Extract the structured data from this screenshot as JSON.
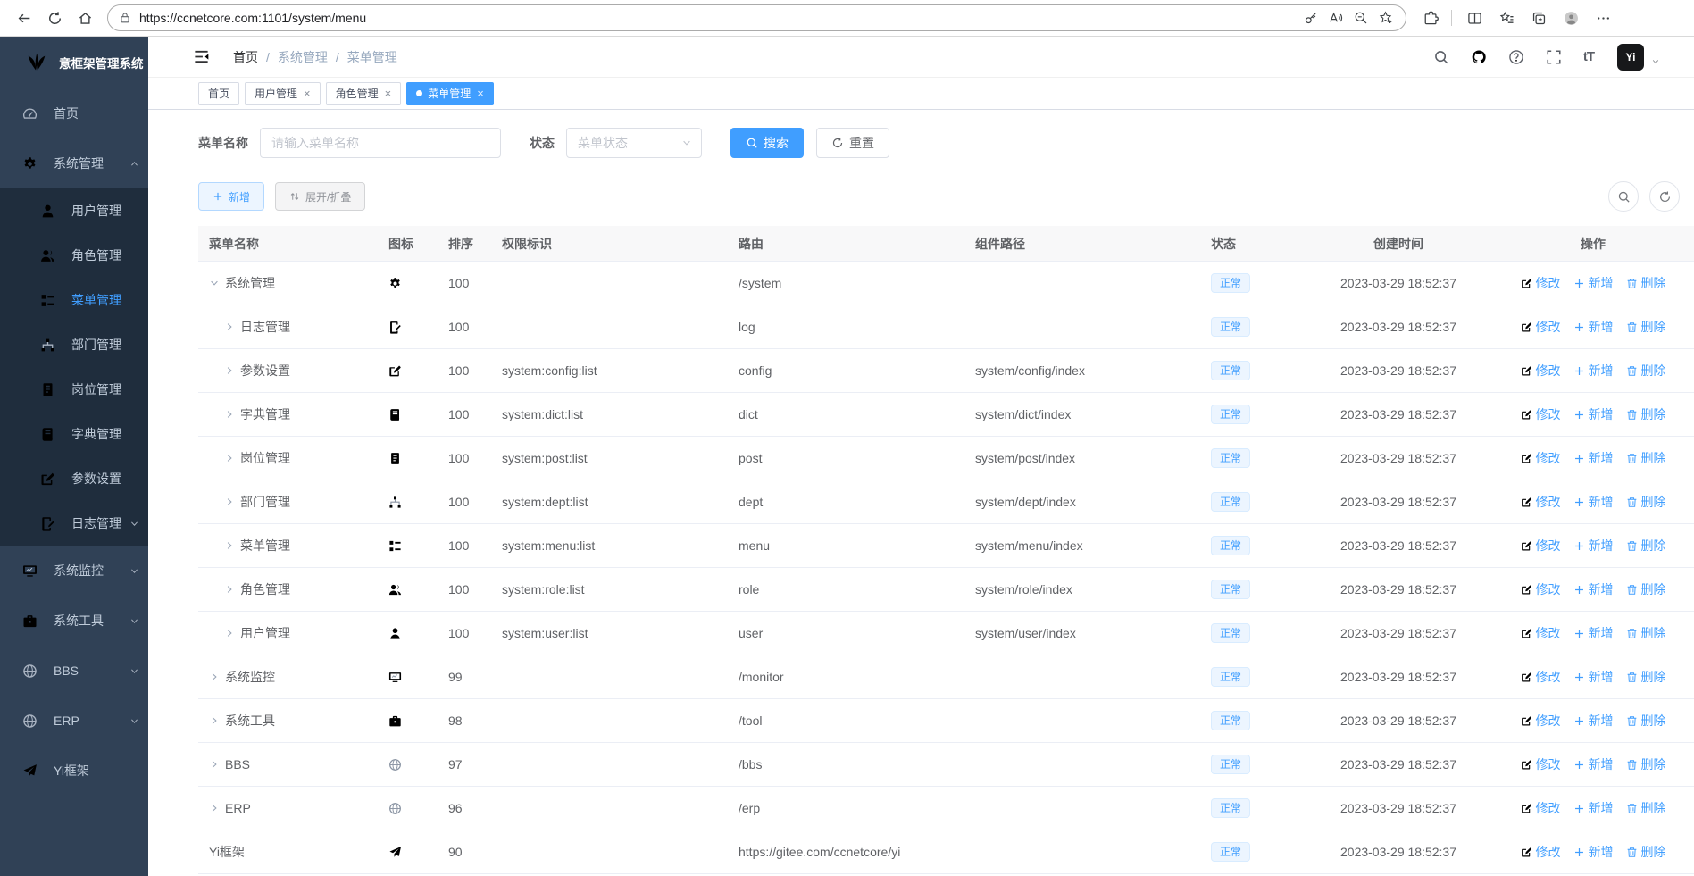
{
  "browser": {
    "url": "https://ccnetcore.com:1101/system/menu",
    "toolbar_icons_left": [
      "back-icon",
      "refresh-icon",
      "home-icon"
    ],
    "address_icons": [
      "lock-icon",
      "key-icon",
      "read-aloud-icon",
      "zoom-out-icon",
      "add-favorite-star-icon"
    ],
    "toolbar_icons_right": [
      "extensions-icon",
      "split-screen-icon",
      "favorites-icon",
      "collections-icon",
      "profile-avatar",
      "more-menu-icon",
      "bing-chat-icon"
    ]
  },
  "sidebar": {
    "logo_text": "意框架管理系统",
    "items": [
      {
        "key": "home",
        "label": "首页",
        "icon": "dashboard"
      },
      {
        "key": "system",
        "label": "系统管理",
        "icon": "gear",
        "expanded": true,
        "children": [
          {
            "key": "user",
            "label": "用户管理",
            "icon": "user"
          },
          {
            "key": "role",
            "label": "角色管理",
            "icon": "users"
          },
          {
            "key": "menu",
            "label": "菜单管理",
            "icon": "tree-list",
            "active": true
          },
          {
            "key": "dept",
            "label": "部门管理",
            "icon": "org"
          },
          {
            "key": "post",
            "label": "岗位管理",
            "icon": "badge"
          },
          {
            "key": "dict",
            "label": "字典管理",
            "icon": "book"
          },
          {
            "key": "config",
            "label": "参数设置",
            "icon": "edit"
          },
          {
            "key": "log",
            "label": "日志管理",
            "icon": "doc-edit",
            "has_children": true
          }
        ]
      },
      {
        "key": "monitor",
        "label": "系统监控",
        "icon": "monitor",
        "collapsible": true
      },
      {
        "key": "tool",
        "label": "系统工具",
        "icon": "brief",
        "collapsible": true
      },
      {
        "key": "bbs",
        "label": "BBS",
        "icon": "globe",
        "collapsible": true
      },
      {
        "key": "erp",
        "label": "ERP",
        "icon": "globe",
        "collapsible": true
      },
      {
        "key": "yi",
        "label": "Yi框架",
        "icon": "plane"
      }
    ]
  },
  "header": {
    "breadcrumb": [
      "首页",
      "系统管理",
      "菜单管理"
    ],
    "right_icons": [
      "search-icon",
      "github-icon",
      "help-icon",
      "fullscreen-icon",
      "font-size-icon"
    ],
    "logo_badge": "Yi"
  },
  "tabs": [
    {
      "label": "首页",
      "closable": false,
      "active": false
    },
    {
      "label": "用户管理",
      "closable": true,
      "active": false
    },
    {
      "label": "角色管理",
      "closable": true,
      "active": false
    },
    {
      "label": "菜单管理",
      "closable": true,
      "active": true
    }
  ],
  "filters": {
    "name_label": "菜单名称",
    "name_placeholder": "请输入菜单名称",
    "status_label": "状态",
    "status_placeholder": "菜单状态",
    "search_label": "搜索",
    "reset_label": "重置"
  },
  "toolbar": {
    "add_label": "新增",
    "expand_label": "展开/折叠",
    "icon_buttons": [
      "search-icon",
      "refresh-icon"
    ]
  },
  "table": {
    "columns": [
      "菜单名称",
      "图标",
      "排序",
      "权限标识",
      "路由",
      "组件路径",
      "状态",
      "创建时间",
      "操作"
    ],
    "actions": {
      "edit": "修改",
      "add": "新增",
      "delete": "删除"
    },
    "rows": [
      {
        "name": "系统管理",
        "level": 0,
        "expand": "open",
        "icon": "gear",
        "sort": "100",
        "perm": "",
        "route": "/system",
        "component": "",
        "status": "正常",
        "created": "2023-03-29 18:52:37"
      },
      {
        "name": "日志管理",
        "level": 1,
        "expand": "closed",
        "icon": "doc-edit",
        "sort": "100",
        "perm": "",
        "route": "log",
        "component": "",
        "status": "正常",
        "created": "2023-03-29 18:52:37"
      },
      {
        "name": "参数设置",
        "level": 1,
        "expand": "closed",
        "icon": "edit",
        "sort": "100",
        "perm": "system:config:list",
        "route": "config",
        "component": "system/config/index",
        "status": "正常",
        "created": "2023-03-29 18:52:37"
      },
      {
        "name": "字典管理",
        "level": 1,
        "expand": "closed",
        "icon": "book",
        "sort": "100",
        "perm": "system:dict:list",
        "route": "dict",
        "component": "system/dict/index",
        "status": "正常",
        "created": "2023-03-29 18:52:37"
      },
      {
        "name": "岗位管理",
        "level": 1,
        "expand": "closed",
        "icon": "badge",
        "sort": "100",
        "perm": "system:post:list",
        "route": "post",
        "component": "system/post/index",
        "status": "正常",
        "created": "2023-03-29 18:52:37"
      },
      {
        "name": "部门管理",
        "level": 1,
        "expand": "closed",
        "icon": "org",
        "sort": "100",
        "perm": "system:dept:list",
        "route": "dept",
        "component": "system/dept/index",
        "status": "正常",
        "created": "2023-03-29 18:52:37"
      },
      {
        "name": "菜单管理",
        "level": 1,
        "expand": "closed",
        "icon": "tree-list",
        "sort": "100",
        "perm": "system:menu:list",
        "route": "menu",
        "component": "system/menu/index",
        "status": "正常",
        "created": "2023-03-29 18:52:37"
      },
      {
        "name": "角色管理",
        "level": 1,
        "expand": "closed",
        "icon": "users",
        "sort": "100",
        "perm": "system:role:list",
        "route": "role",
        "component": "system/role/index",
        "status": "正常",
        "created": "2023-03-29 18:52:37"
      },
      {
        "name": "用户管理",
        "level": 1,
        "expand": "closed",
        "icon": "user",
        "sort": "100",
        "perm": "system:user:list",
        "route": "user",
        "component": "system/user/index",
        "status": "正常",
        "created": "2023-03-29 18:52:37"
      },
      {
        "name": "系统监控",
        "level": 0,
        "expand": "closed",
        "icon": "monitor",
        "sort": "99",
        "perm": "",
        "route": "/monitor",
        "component": "",
        "status": "正常",
        "created": "2023-03-29 18:52:37"
      },
      {
        "name": "系统工具",
        "level": 0,
        "expand": "closed",
        "icon": "brief",
        "sort": "98",
        "perm": "",
        "route": "/tool",
        "component": "",
        "status": "正常",
        "created": "2023-03-29 18:52:37"
      },
      {
        "name": "BBS",
        "level": 0,
        "expand": "closed",
        "icon": "globe",
        "sort": "97",
        "perm": "",
        "route": "/bbs",
        "component": "",
        "status": "正常",
        "created": "2023-03-29 18:52:37"
      },
      {
        "name": "ERP",
        "level": 0,
        "expand": "closed",
        "icon": "globe",
        "sort": "96",
        "perm": "",
        "route": "/erp",
        "component": "",
        "status": "正常",
        "created": "2023-03-29 18:52:37"
      },
      {
        "name": "Yi框架",
        "level": 0,
        "expand": "none",
        "icon": "plane",
        "sort": "90",
        "perm": "",
        "route": "https://gitee.com/ccnetcore/yi",
        "component": "",
        "status": "正常",
        "created": "2023-03-29 18:52:37"
      }
    ]
  },
  "colors": {
    "accent": "#409eff",
    "sidebar_bg": "#304156",
    "submenu_bg": "#1f2d3d",
    "tag_bg": "#ecf5ff",
    "tag_text": "#409eff",
    "tag_border": "#d9ecff"
  }
}
